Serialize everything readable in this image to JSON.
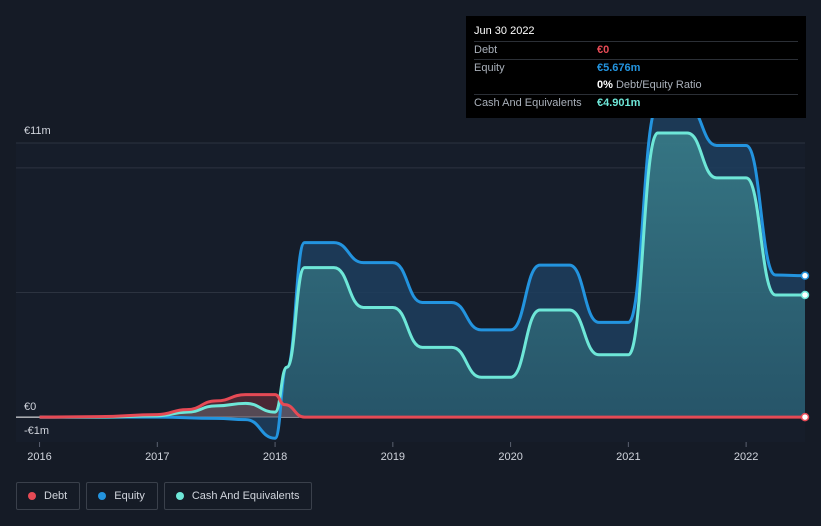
{
  "tooltip": {
    "date": "Jun 30 2022",
    "rows": [
      {
        "label": "Debt",
        "value": "€0",
        "color": "#e64a55"
      },
      {
        "label": "Equity",
        "value": "€5.676m",
        "color": "#2394df"
      },
      {
        "label": "",
        "value": "0%",
        "extra": "Debt/Equity Ratio",
        "color": "#ffffff"
      },
      {
        "label": "Cash And Equivalents",
        "value": "€4.901m",
        "color": "#6ee7d8"
      }
    ]
  },
  "legend": [
    {
      "label": "Debt",
      "color": "#e64a55"
    },
    {
      "label": "Equity",
      "color": "#2394df"
    },
    {
      "label": "Cash And Equivalents",
      "color": "#6ee7d8"
    }
  ],
  "chart_data": {
    "type": "area",
    "xlim": [
      2015.8,
      2022.5
    ],
    "ylim": [
      -1,
      11
    ],
    "ytick_labels": [
      "€11m",
      "€0",
      "-€1m"
    ],
    "xtick_labels": [
      "2016",
      "2017",
      "2018",
      "2019",
      "2020",
      "2021",
      "2022"
    ],
    "xticks": [
      2016,
      2017,
      2018,
      2019,
      2020,
      2021,
      2022
    ],
    "series": [
      {
        "name": "Debt",
        "color": "#e64a55",
        "x": [
          2016.0,
          2016.5,
          2017.0,
          2017.25,
          2017.5,
          2017.75,
          2018.0,
          2018.08,
          2018.25,
          2019.0,
          2020.0,
          2021.0,
          2022.0,
          2022.5
        ],
        "y": [
          0,
          0.02,
          0.1,
          0.3,
          0.65,
          0.9,
          0.9,
          0.5,
          0,
          0,
          0,
          0,
          0,
          0
        ]
      },
      {
        "name": "Equity",
        "color": "#2394df",
        "x": [
          2016.0,
          2016.5,
          2017.0,
          2017.5,
          2017.75,
          2018.0,
          2018.1,
          2018.25,
          2018.5,
          2018.75,
          2019.0,
          2019.25,
          2019.5,
          2019.75,
          2020.0,
          2020.25,
          2020.5,
          2020.75,
          2021.0,
          2021.25,
          2021.5,
          2021.75,
          2022.0,
          2022.25,
          2022.5
        ],
        "y": [
          0,
          0,
          0,
          -0.05,
          -0.1,
          -0.85,
          2.0,
          7.0,
          7.0,
          6.2,
          6.2,
          4.6,
          4.6,
          3.5,
          3.5,
          6.1,
          6.1,
          3.8,
          3.8,
          12.5,
          12.5,
          10.9,
          10.9,
          5.7,
          5.676
        ]
      },
      {
        "name": "Cash And Equivalents",
        "color": "#6ee7d8",
        "x": [
          2016.0,
          2016.5,
          2017.0,
          2017.25,
          2017.5,
          2017.75,
          2018.0,
          2018.1,
          2018.25,
          2018.5,
          2018.75,
          2019.0,
          2019.25,
          2019.5,
          2019.75,
          2020.0,
          2020.25,
          2020.5,
          2020.75,
          2021.0,
          2021.25,
          2021.5,
          2021.75,
          2022.0,
          2022.25,
          2022.5
        ],
        "y": [
          0,
          0,
          0.05,
          0.2,
          0.45,
          0.55,
          0.2,
          2.0,
          6.0,
          6.0,
          4.4,
          4.4,
          2.8,
          2.8,
          1.6,
          1.6,
          4.3,
          4.3,
          2.5,
          2.5,
          11.4,
          11.4,
          9.6,
          9.6,
          4.9,
          4.901
        ]
      }
    ]
  }
}
